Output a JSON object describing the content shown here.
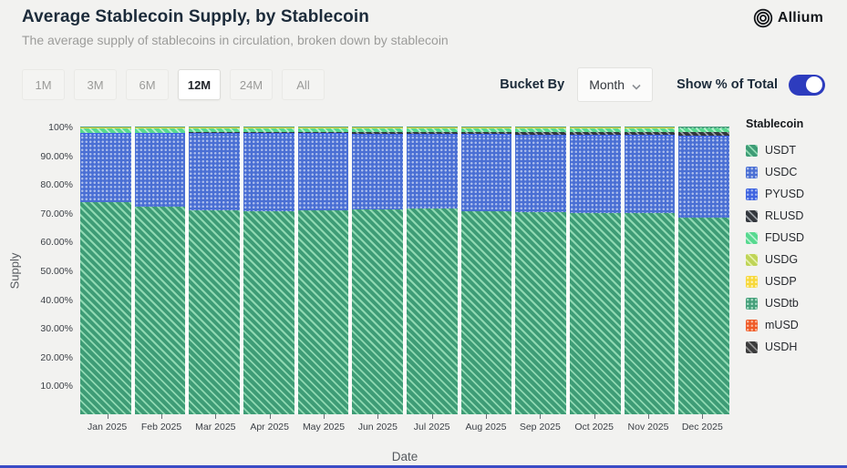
{
  "header": {
    "title": "Average Stablecoin Supply, by Stablecoin",
    "subtitle": "The average supply of stablecoins in circulation, broken down by stablecoin",
    "logo_text": "Allium"
  },
  "controls": {
    "ranges": [
      {
        "label": "1M",
        "active": false
      },
      {
        "label": "3M",
        "active": false
      },
      {
        "label": "6M",
        "active": false
      },
      {
        "label": "12M",
        "active": true
      },
      {
        "label": "24M",
        "active": false
      },
      {
        "label": "All",
        "active": false
      }
    ],
    "bucket_by_label": "Bucket By",
    "bucket_value": "Month",
    "toggle_label": "Show % of Total",
    "toggle_on": true,
    "toggle_color": "#2d3cbe"
  },
  "chart": {
    "y_axis_title": "Supply",
    "x_axis_title": "Date",
    "y_ticks": [
      {
        "label": "100%",
        "value": 100
      },
      {
        "label": "90.00%",
        "value": 90
      },
      {
        "label": "80.00%",
        "value": 80
      },
      {
        "label": "70.00%",
        "value": 70
      },
      {
        "label": "60.00%",
        "value": 60
      },
      {
        "label": "50.00%",
        "value": 50
      },
      {
        "label": "40.00%",
        "value": 40
      },
      {
        "label": "30.00%",
        "value": 30
      },
      {
        "label": "20.00%",
        "value": 20
      },
      {
        "label": "10.00%",
        "value": 10
      }
    ]
  },
  "legend": {
    "title": "Stablecoin"
  },
  "chart_data": {
    "type": "bar",
    "stacked": true,
    "percent_of_total": true,
    "title": "Average Stablecoin Supply, by Stablecoin",
    "xlabel": "Date",
    "ylabel": "Supply",
    "ylim": [
      0,
      100
    ],
    "legend_position": "right",
    "categories": [
      "Jan 2025",
      "Feb 2025",
      "Mar 2025",
      "Apr 2025",
      "May 2025",
      "Jun 2025",
      "Jul 2025",
      "Aug 2025",
      "Sep 2025",
      "Oct 2025",
      "Nov 2025",
      "Dec 2025"
    ],
    "series": [
      {
        "name": "USDT",
        "pattern": "hatch",
        "color": "#3e9c76",
        "accent": "#8fd9b2",
        "values": [
          73.8,
          72.3,
          71.0,
          70.6,
          71.0,
          71.2,
          71.5,
          70.6,
          70.2,
          70.0,
          69.8,
          68.3
        ]
      },
      {
        "name": "USDC",
        "pattern": "dots",
        "color": "#4a6fd4",
        "accent": "#abbdeb",
        "values": [
          23.2,
          24.7,
          26.0,
          26.3,
          25.9,
          25.6,
          25.2,
          26.0,
          26.2,
          26.3,
          26.4,
          27.7
        ]
      },
      {
        "name": "PYUSD",
        "pattern": "dots",
        "color": "#3e63e0",
        "accent": "#9fb4f0",
        "values": [
          0.7,
          0.7,
          0.7,
          0.8,
          0.8,
          0.8,
          0.9,
          0.9,
          0.9,
          0.9,
          0.9,
          0.9
        ]
      },
      {
        "name": "RLUSD",
        "pattern": "hatch",
        "color": "#33373d",
        "accent": "#9ba0a6",
        "values": [
          0.2,
          0.2,
          0.3,
          0.3,
          0.4,
          0.5,
          0.5,
          0.6,
          0.8,
          0.9,
          1.0,
          1.1
        ]
      },
      {
        "name": "FDUSD",
        "pattern": "hatch",
        "color": "#57d98f",
        "accent": "#b5efd0",
        "values": [
          1.5,
          1.5,
          1.4,
          1.4,
          1.3,
          1.3,
          1.3,
          1.3,
          1.3,
          1.3,
          1.3,
          1.3
        ]
      },
      {
        "name": "USDG",
        "pattern": "hatch",
        "color": "#bfd457",
        "accent": "#e4f0a8",
        "values": [
          0.1,
          0.1,
          0.1,
          0.1,
          0.1,
          0.1,
          0.1,
          0.1,
          0.1,
          0.1,
          0.1,
          0.1
        ]
      },
      {
        "name": "USDP",
        "pattern": "dots",
        "color": "#f7d83a",
        "accent": "#fcf0b0",
        "values": [
          0.1,
          0.1,
          0.1,
          0.1,
          0.1,
          0.1,
          0.1,
          0.1,
          0.1,
          0.1,
          0.1,
          0.1
        ]
      },
      {
        "name": "USDtb",
        "pattern": "dots",
        "color": "#46a07b",
        "accent": "#a8dcc4",
        "values": [
          0.3,
          0.3,
          0.3,
          0.3,
          0.3,
          0.3,
          0.3,
          0.3,
          0.3,
          0.3,
          0.3,
          0.4
        ]
      },
      {
        "name": "mUSD",
        "pattern": "dots",
        "color": "#ef5b28",
        "accent": "#f8b79a",
        "values": [
          0.05,
          0.05,
          0.05,
          0.05,
          0.05,
          0.05,
          0.05,
          0.05,
          0.05,
          0.05,
          0.05,
          0.05
        ]
      },
      {
        "name": "USDH",
        "pattern": "hatch",
        "color": "#3b3b3b",
        "accent": "#8f8f8f",
        "values": [
          0.05,
          0.05,
          0.05,
          0.05,
          0.05,
          0.05,
          0.05,
          0.05,
          0.05,
          0.05,
          0.05,
          0.05
        ]
      }
    ]
  }
}
